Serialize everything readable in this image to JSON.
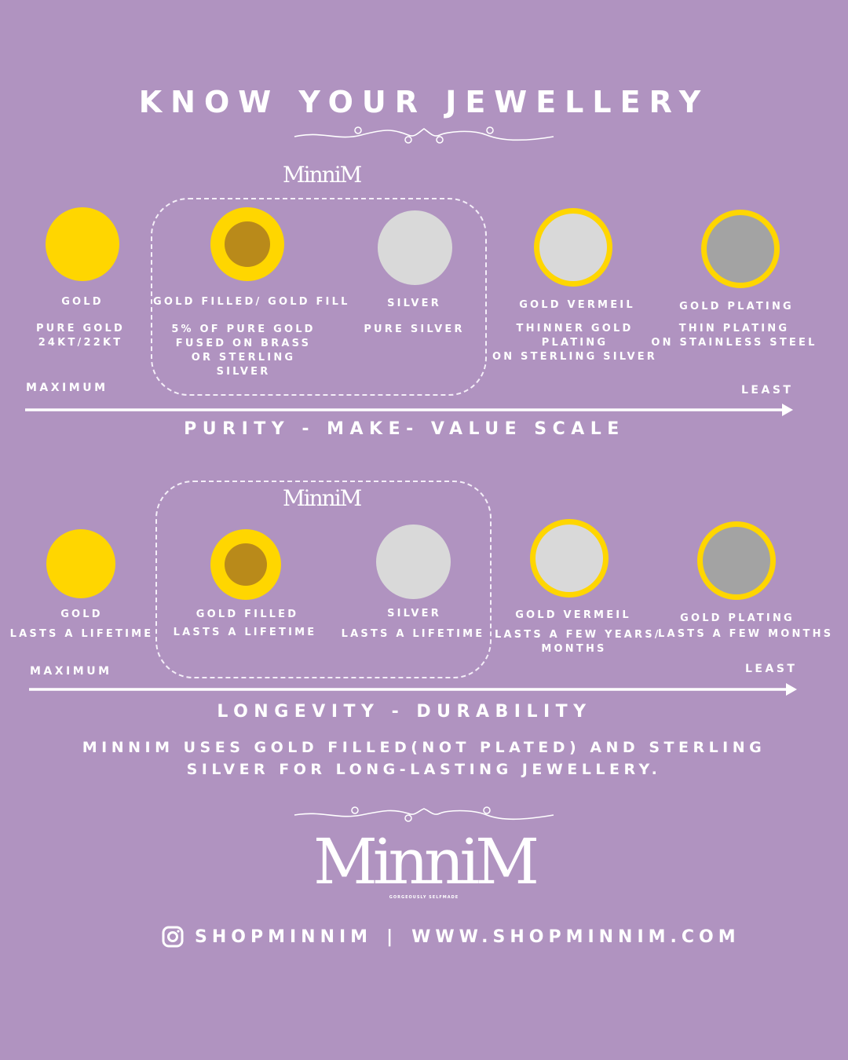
{
  "title": "KNOW YOUR JEWELLERY",
  "colors": {
    "background": "#b093c0",
    "gold": "#ffd600",
    "dark_gold": "#b98a1a",
    "silver": "#d9d9d9",
    "grey": "#a3a3a3"
  },
  "section1": {
    "brand": "MinniM",
    "items": [
      {
        "name": "GOLD",
        "desc": [
          "PURE GOLD",
          "24KT/22KT"
        ]
      },
      {
        "name": "GOLD FILLED/ GOLD FILL",
        "desc": [
          "5% OF PURE GOLD",
          "FUSED ON BRASS",
          "OR STERLING",
          "SILVER"
        ]
      },
      {
        "name": "SILVER",
        "desc": [
          "PURE SILVER"
        ]
      },
      {
        "name": "GOLD VERMEIL",
        "desc": [
          "THINNER GOLD",
          "PLATING",
          "ON STERLING SILVER"
        ]
      },
      {
        "name": "GOLD PLATING",
        "desc": [
          "THIN PLATING",
          "ON STAINLESS STEEL"
        ]
      }
    ],
    "scale_start": "MAXIMUM",
    "scale_end": "LEAST",
    "scale_title": "PURITY - MAKE- VALUE SCALE"
  },
  "section2": {
    "brand": "MinniM",
    "items": [
      {
        "name": "GOLD",
        "desc": [
          "LASTS A LIFETIME"
        ]
      },
      {
        "name": "GOLD FILLED",
        "desc": [
          "LASTS A LIFETIME"
        ]
      },
      {
        "name": "SILVER",
        "desc": [
          "LASTS A LIFETIME"
        ]
      },
      {
        "name": "GOLD VERMEIL",
        "desc": [
          "LASTS A FEW YEARS/",
          "MONTHS"
        ]
      },
      {
        "name": "GOLD PLATING",
        "desc": [
          "LASTS A FEW MONTHS"
        ]
      }
    ],
    "scale_start": "MAXIMUM",
    "scale_end": "LEAST",
    "scale_title": "LONGEVITY - DURABILITY"
  },
  "note": [
    "MINNIM USES GOLD FILLED(NOT PLATED) AND STERLING",
    "SILVER FOR LONG-LASTING JEWELLERY."
  ],
  "logo": {
    "name": "MinniM",
    "tagline": "GORGEOUSLY SELFMADE"
  },
  "footer": {
    "handle": "SHOPMINNIM",
    "separator": "|",
    "website": "WWW.SHOPMINNIM.COM",
    "icon": "instagram-icon"
  }
}
